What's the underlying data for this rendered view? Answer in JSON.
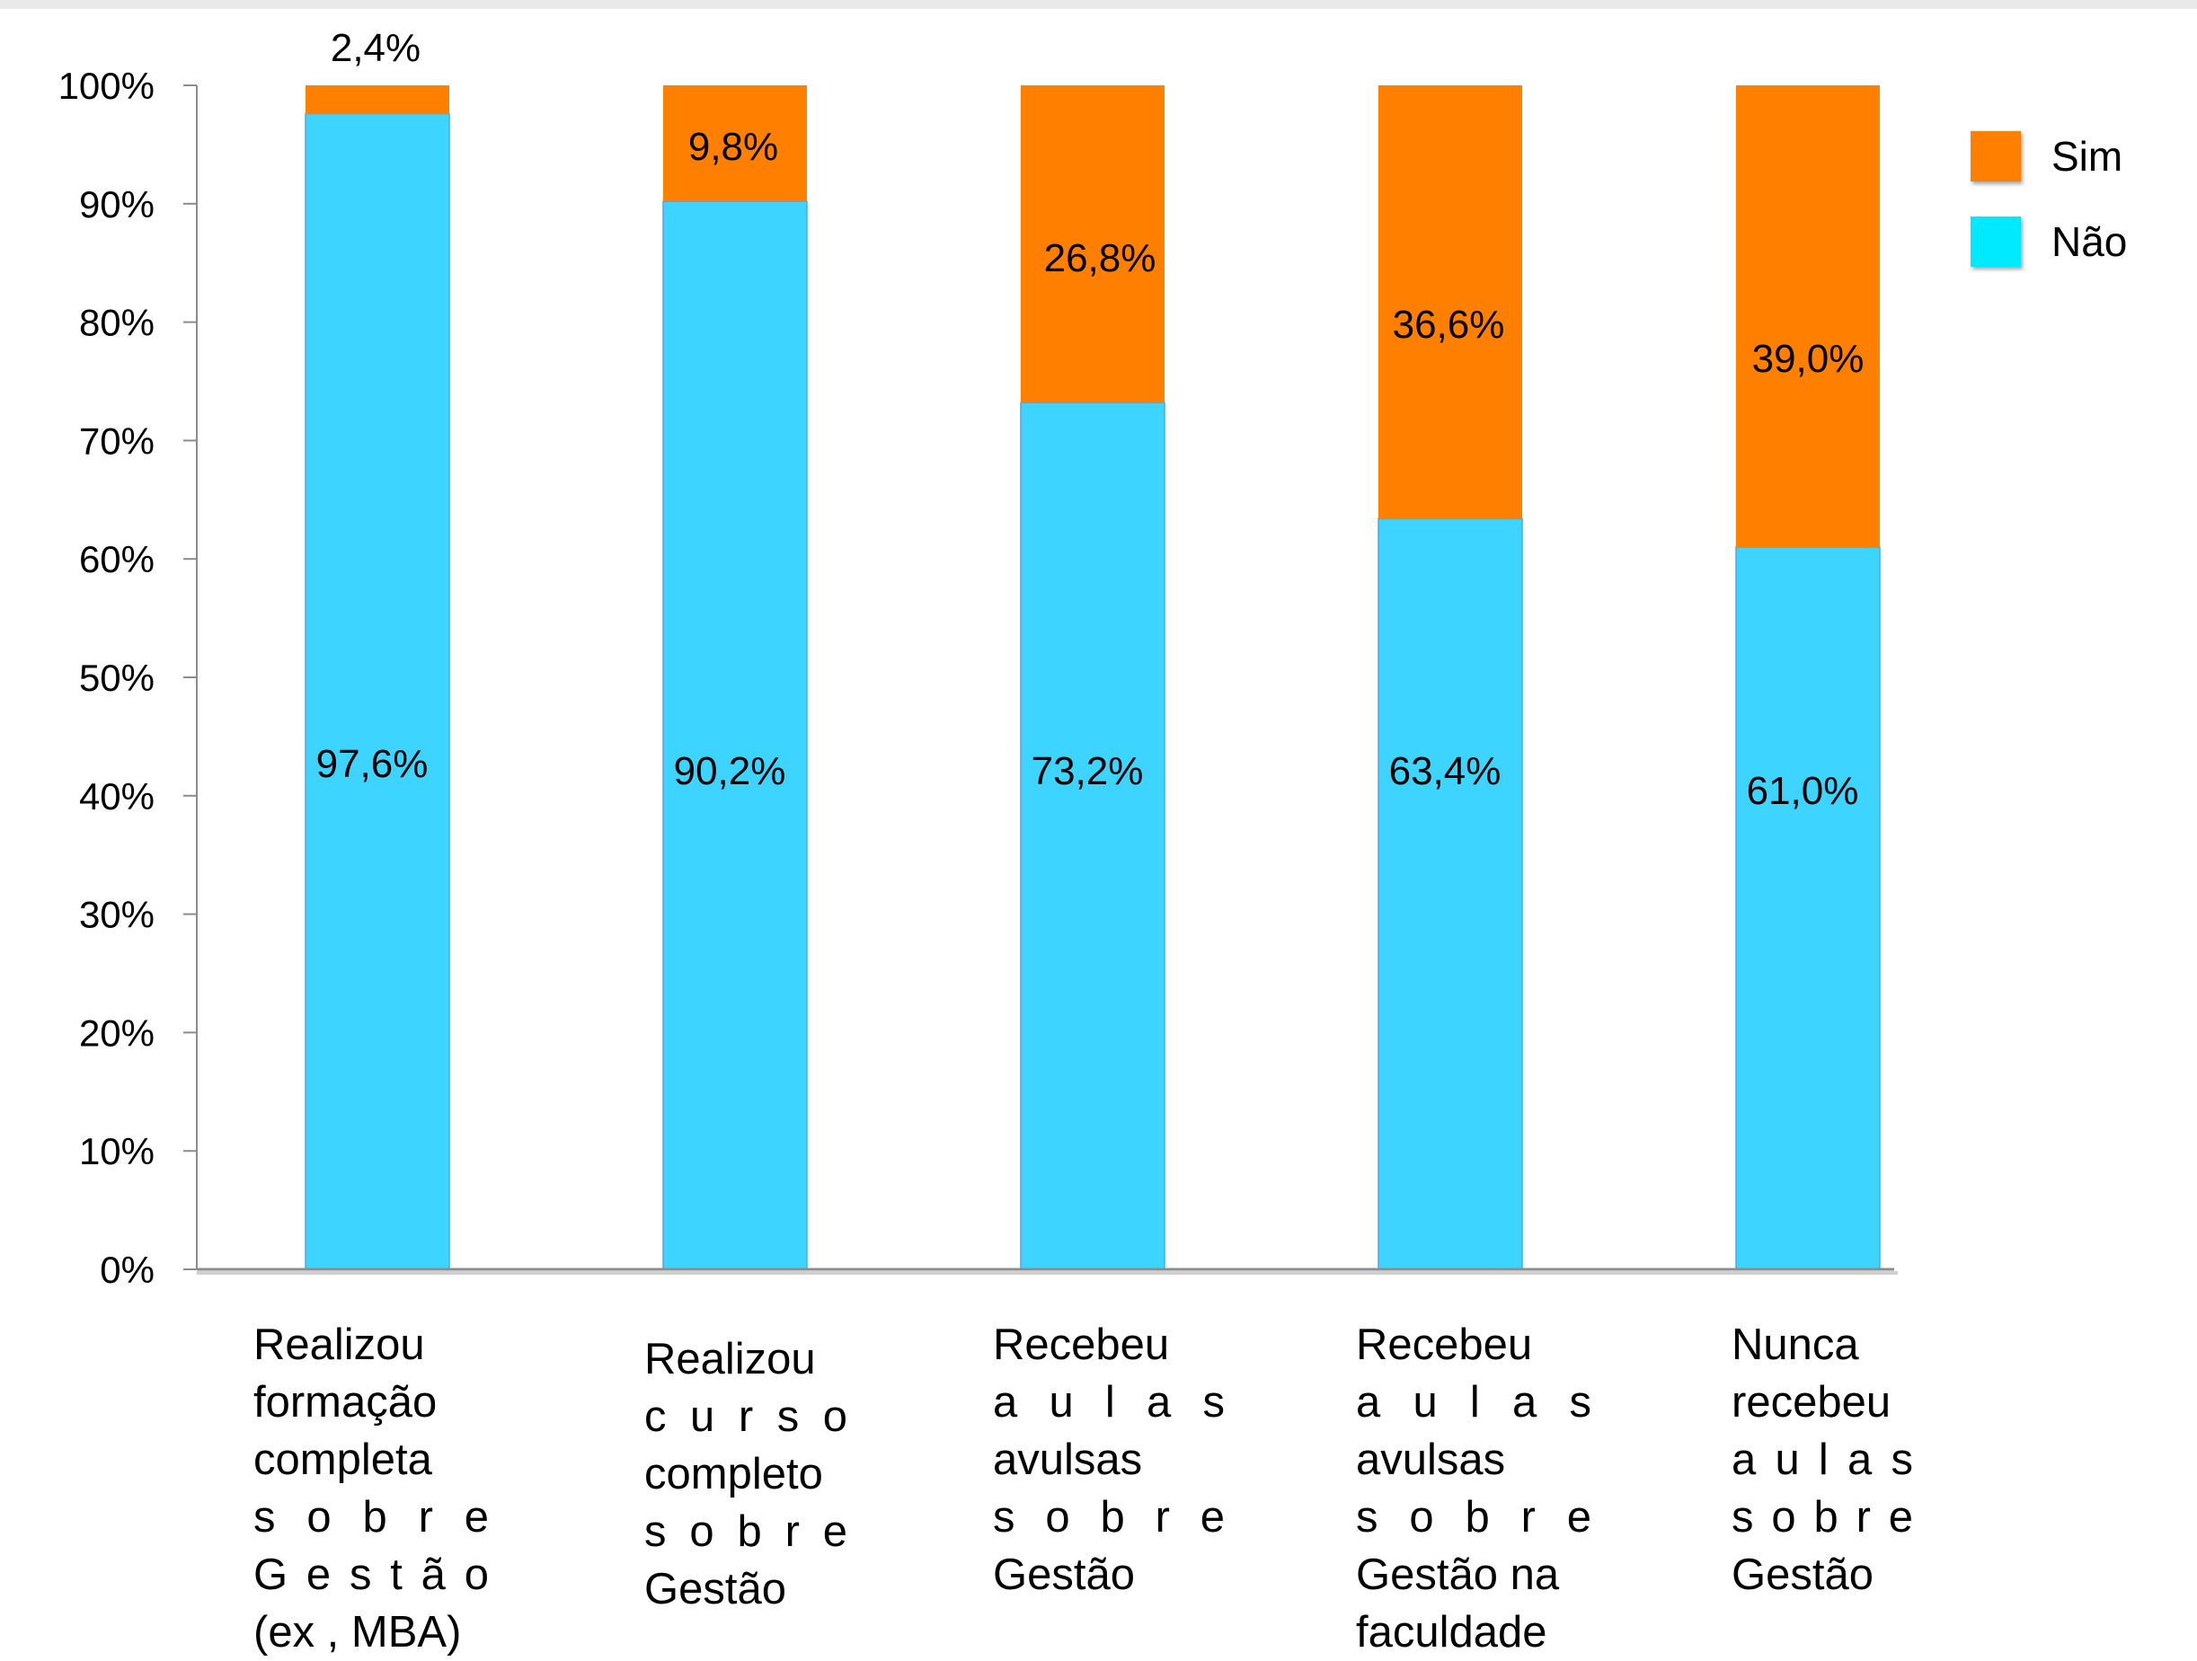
{
  "chart_data": {
    "type": "bar",
    "stacked": true,
    "percent_stacked": true,
    "categories": [
      [
        "Realizou",
        "formação",
        "completa",
        "s o b r e",
        "G e s t ã o",
        "(ex , MBA)"
      ],
      [
        "Realizou",
        "c u r s o",
        "completo",
        "s o b r e",
        "Gestão"
      ],
      [
        "Recebeu",
        "a u l a s",
        "avulsas",
        "s o b r e",
        "Gestão"
      ],
      [
        "Recebeu",
        "a u l a s",
        "avulsas",
        "s o b r e",
        "Gestão na",
        "faculdade"
      ],
      [
        "Nunca",
        "recebeu",
        "a u l a s",
        "s o b r e",
        "Gestão"
      ]
    ],
    "series": [
      {
        "name": "Não",
        "values": [
          97.6,
          90.2,
          73.2,
          63.4,
          61.0
        ],
        "labels": [
          "97,6%",
          "90,2%",
          "73,2%",
          "63,4%",
          "61,0%"
        ],
        "color": "#3dd5ff"
      },
      {
        "name": "Sim",
        "values": [
          2.4,
          9.8,
          26.8,
          36.6,
          39.0
        ],
        "labels": [
          "2,4%",
          "9,8%",
          "26,8%",
          "36,6%",
          "39,0%"
        ],
        "color": "#ff7f00"
      }
    ],
    "ylim": [
      0,
      100
    ],
    "yticks": [
      "0%",
      "10%",
      "20%",
      "30%",
      "40%",
      "50%",
      "60%",
      "70%",
      "80%",
      "90%",
      "100%"
    ],
    "legend": {
      "position": "top-right",
      "entries": [
        {
          "name": "Sim",
          "color": "#ff7f00"
        },
        {
          "name": "Não",
          "color": "#00eaff"
        }
      ]
    },
    "grid": false,
    "title": "",
    "xlabel": "",
    "ylabel": ""
  }
}
